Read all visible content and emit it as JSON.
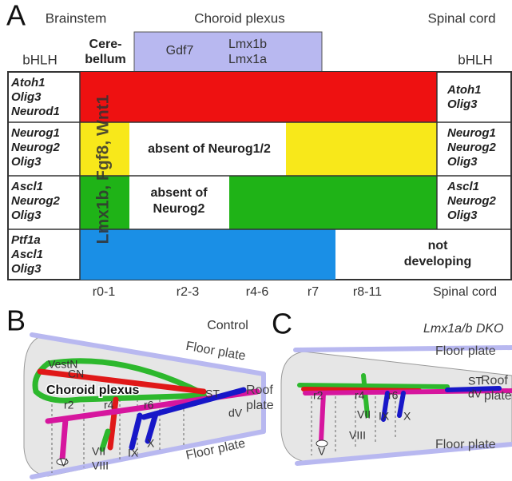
{
  "panel_a": {
    "letter": "A",
    "regions": [
      "Brainstem",
      "Choroid plexus",
      "Spinal cord"
    ],
    "cerebellum": [
      "Cere-",
      "bellum"
    ],
    "roof_genes": [
      "Gdf7",
      "Lmx1b",
      "Lmx1a"
    ],
    "bhlh_left": "bHLH",
    "bhlh_right": "bHLH",
    "rows": [
      {
        "left": [
          "Atoh1",
          "Olig3",
          "Neurod1"
        ],
        "right": [
          "Atoh1",
          "Olig3"
        ]
      },
      {
        "left": [
          "Neurog1",
          "Neurog2",
          "Olig3"
        ],
        "right": [
          "Neurog1",
          "Neurog2",
          "Olig3"
        ],
        "note": [
          "absent of Neurog1/2"
        ]
      },
      {
        "left": [
          "Ascl1",
          "Neurog2",
          "Olig3"
        ],
        "right": [
          "Ascl1",
          "Neurog2",
          "Olig3"
        ],
        "note": [
          "absent of",
          "Neurog2"
        ]
      },
      {
        "left": [
          "Ptf1a",
          "Ascl1",
          "Olig3"
        ],
        "note": [
          "not",
          "developing"
        ]
      }
    ],
    "vertical_label": "Lmx1b, Fgf8, Wnt1",
    "segments": [
      "r0-1",
      "r2-3",
      "r4-6",
      "r7",
      "r8-11",
      "Spinal cord"
    ]
  },
  "panel_b": {
    "letter": "B",
    "condition": "Control",
    "floor_plate_top": "Floor plate",
    "floor_plate_bottom": "Floor plate",
    "roof_plate": [
      "Roof",
      "plate"
    ],
    "vestn": "VestN",
    "cn": "CN",
    "choroid_plexus": "Choroid plexus",
    "st": "ST",
    "dv": "dV",
    "rhombomeres": [
      "r2",
      "r4",
      "r6"
    ],
    "nerves": [
      "V",
      "VII",
      "VIII",
      "IX",
      "X"
    ]
  },
  "panel_c": {
    "letter": "C",
    "condition": "Lmx1a/b DKO",
    "floor_plate_top": "Floor plate",
    "floor_plate_bottom": "Floor plate",
    "roof_plate": [
      "Roof",
      "plate"
    ],
    "st": "ST",
    "dv": "dV",
    "rhombomeres": [
      "r2",
      "r4",
      "r6"
    ],
    "nerves": [
      "V",
      "VII",
      "VIII",
      "IX",
      "X"
    ]
  }
}
